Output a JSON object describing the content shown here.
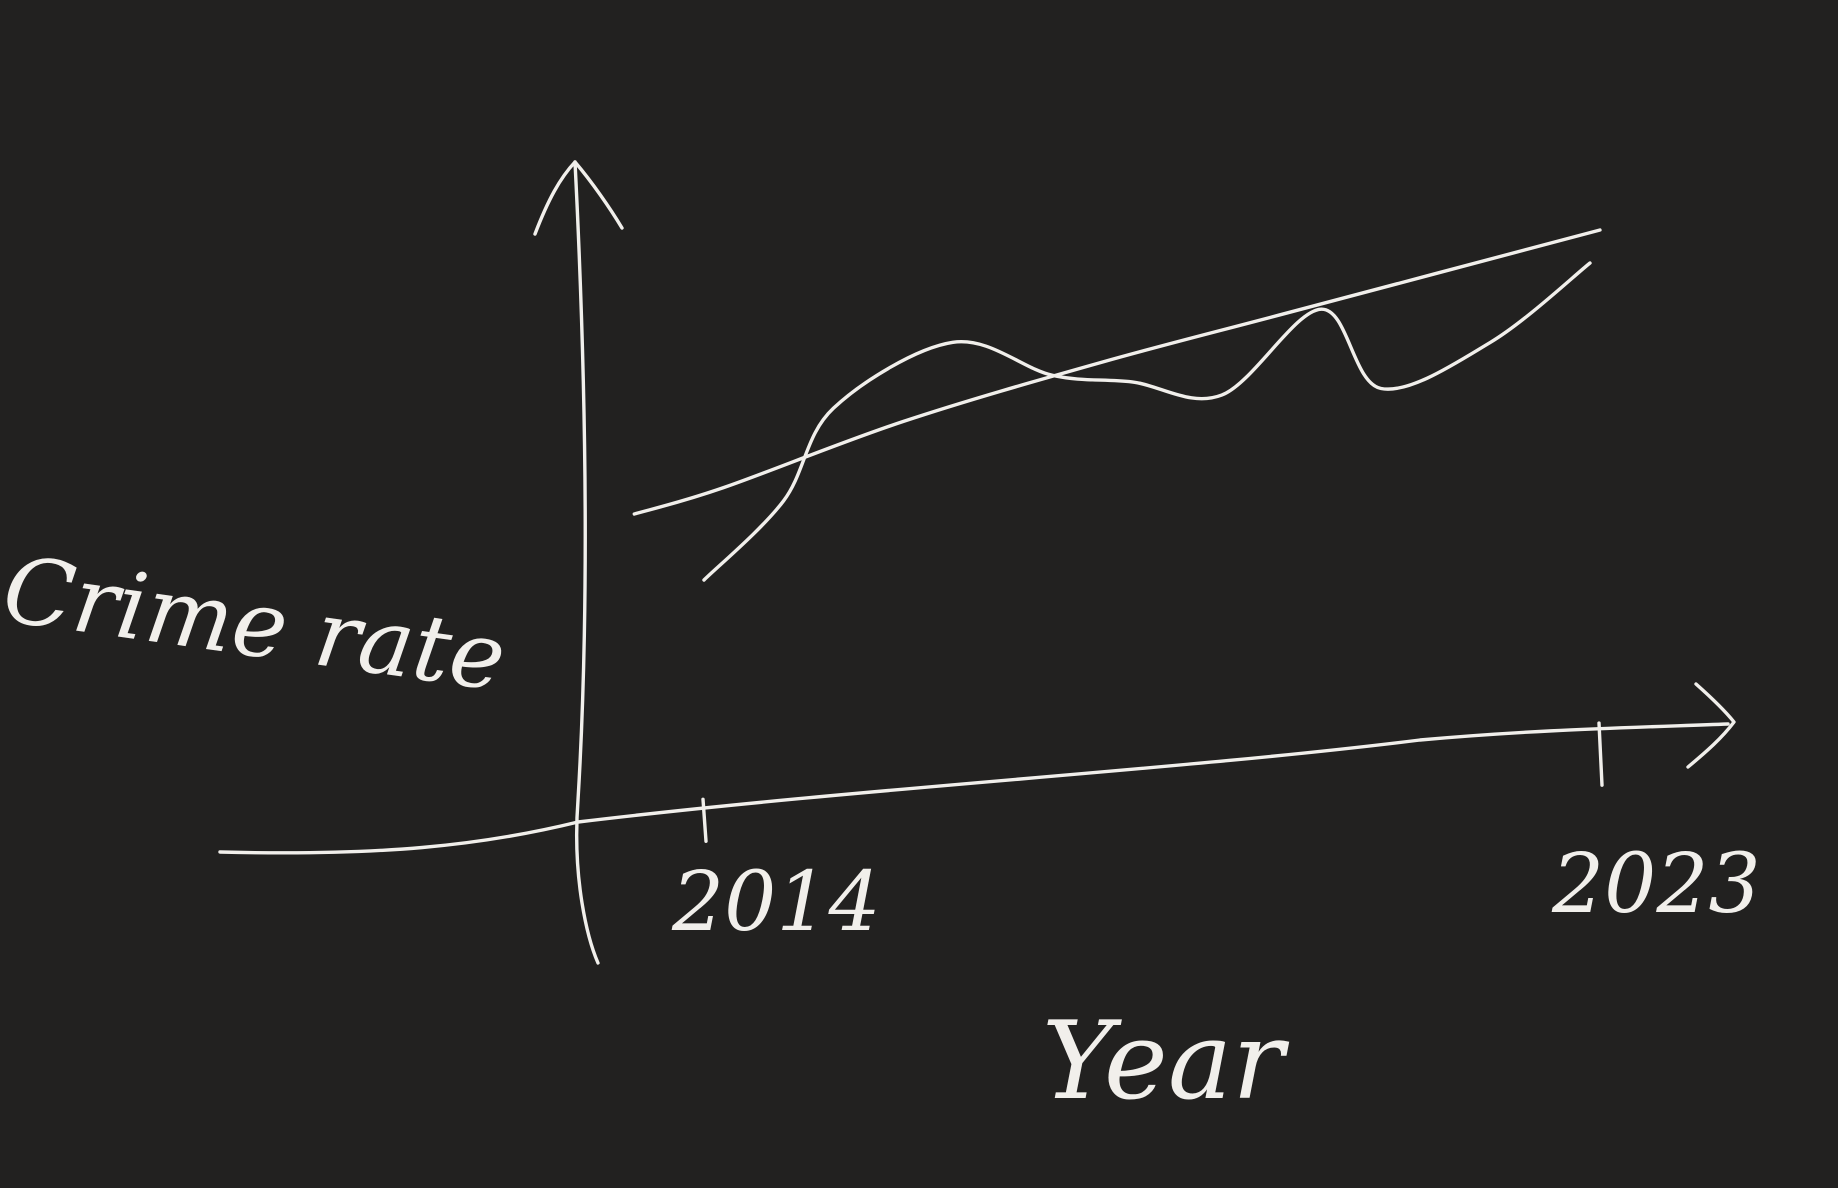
{
  "chart_data": {
    "type": "line",
    "title": "",
    "xlabel": "Year",
    "ylabel": "Crime rate",
    "x_ticks": [
      "2014",
      "2023"
    ],
    "xlim": [
      2013,
      2024
    ],
    "ylim": [
      0,
      10
    ],
    "grid": false,
    "legend": "none",
    "series": [
      {
        "x": [
          2014.0,
          2014.8,
          2015.3,
          2016.5,
          2017.5,
          2018.3,
          2019.2,
          2020.2,
          2020.8,
          2021.9,
          2022.9
        ],
        "y": [
          3.4,
          4.6,
          6.0,
          7.0,
          6.5,
          6.4,
          6.2,
          7.5,
          6.3,
          7.0,
          8.2
        ]
      },
      {
        "x": [
          2013.3,
          2014.2,
          2016.0,
          2018.0,
          2020.0,
          2023.0
        ],
        "y": [
          4.4,
          4.8,
          5.8,
          6.7,
          7.5,
          8.7
        ]
      }
    ]
  },
  "colors": {
    "background": "#222120",
    "ink": "#f1efeb"
  }
}
